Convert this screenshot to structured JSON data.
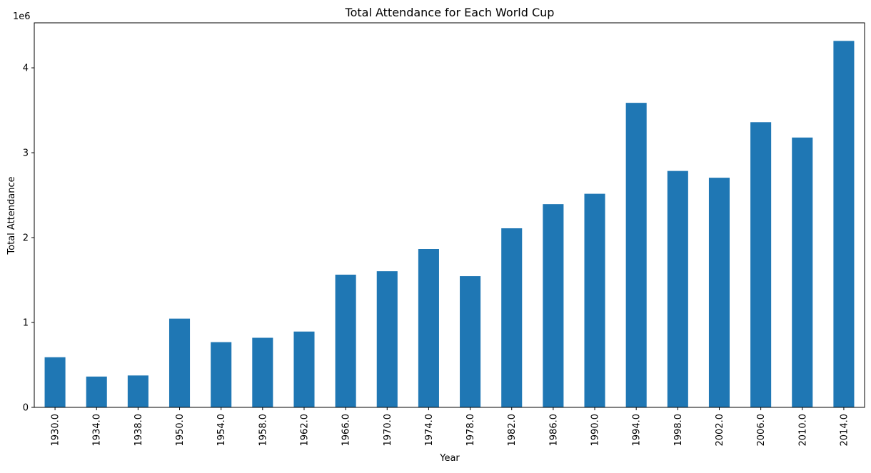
{
  "chart_data": {
    "type": "bar",
    "title": "Total Attendance for Each World Cup",
    "xlabel": "Year",
    "ylabel": "Total Attendance",
    "y_offset_label": "1e6",
    "categories": [
      "1930.0",
      "1934.0",
      "1938.0",
      "1950.0",
      "1954.0",
      "1958.0",
      "1962.0",
      "1966.0",
      "1970.0",
      "1974.0",
      "1978.0",
      "1982.0",
      "1986.0",
      "1990.0",
      "1994.0",
      "1998.0",
      "2002.0",
      "2006.0",
      "2010.0",
      "2014.0"
    ],
    "values": [
      590549,
      363000,
      375700,
      1045246,
      768607,
      819810,
      893172,
      1563135,
      1603975,
      1865753,
      1545791,
      2109723,
      2394031,
      2516215,
      3587538,
      2785100,
      2705197,
      3359439,
      3178856,
      4317102
    ],
    "ylim": [
      0,
      4530000
    ],
    "yticks": [
      0,
      1000000,
      2000000,
      3000000,
      4000000
    ],
    "ytick_labels": [
      "0",
      "1",
      "2",
      "3",
      "4"
    ],
    "bar_color": "#1f77b4",
    "grid": false,
    "legend": "none"
  }
}
